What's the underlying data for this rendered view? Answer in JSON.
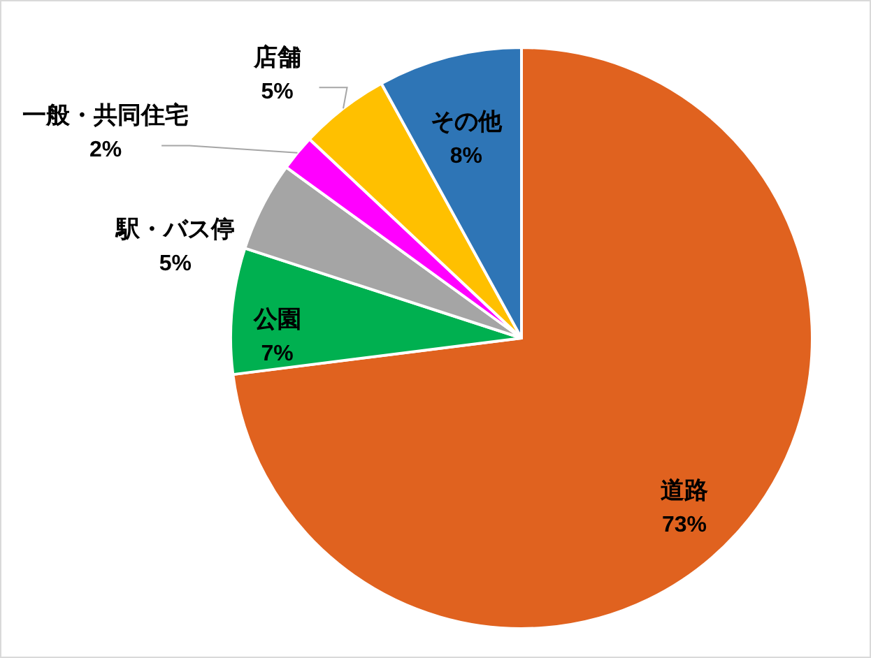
{
  "chart_data": {
    "type": "pie",
    "categories": [
      "道路",
      "公園",
      "駅・バス停",
      "一般・共同住宅",
      "店舗",
      "その他"
    ],
    "values": [
      73,
      7,
      5,
      2,
      5,
      8
    ],
    "value_labels": [
      "73%",
      "7%",
      "5%",
      "2%",
      "5%",
      "8%"
    ],
    "colors": [
      "#e0621f",
      "#00b050",
      "#a5a5a5",
      "#ff00ff",
      "#ffc000",
      "#2e75b6"
    ]
  }
}
